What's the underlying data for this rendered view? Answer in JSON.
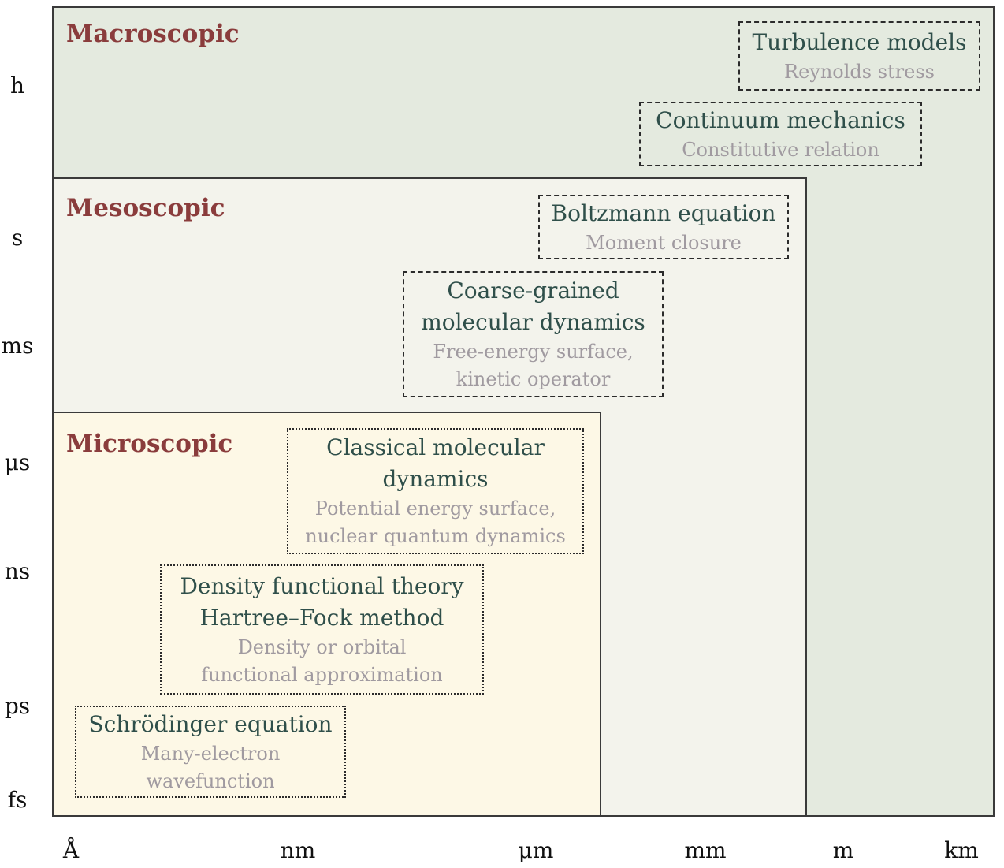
{
  "regions": {
    "macro": {
      "title": "Macroscopic"
    },
    "meso": {
      "title": "Mesoscopic"
    },
    "micro": {
      "title": "Microscopic"
    }
  },
  "methods": {
    "turbulence": {
      "title": "Turbulence models",
      "subtitle": "Reynolds stress"
    },
    "continuum": {
      "title": "Continuum mechanics",
      "subtitle": "Constitutive relation"
    },
    "boltzmann": {
      "title": "Boltzmann equation",
      "subtitle": "Moment closure"
    },
    "coarse_grained": {
      "title_lines": [
        "Coarse-grained",
        "molecular dynamics"
      ],
      "subtitle_lines": [
        "Free-energy surface,",
        "kinetic operator"
      ]
    },
    "classical_md": {
      "title_lines": [
        "Classical molecular",
        "dynamics"
      ],
      "subtitle_lines": [
        "Potential energy surface,",
        "nuclear quantum dynamics"
      ]
    },
    "dft": {
      "title_lines": [
        "Density functional theory",
        "Hartree–Fock method"
      ],
      "subtitle_lines": [
        "Density or orbital",
        "functional approximation"
      ]
    },
    "schrodinger": {
      "title": "Schrödinger equation",
      "subtitle_lines": [
        "Many-electron",
        "wavefunction"
      ]
    }
  },
  "axes": {
    "time_ticks": [
      "h",
      "s",
      "ms",
      "μs",
      "ns",
      "ps",
      "fs"
    ],
    "length_ticks": [
      "Å",
      "nm",
      "μm",
      "mm",
      "m",
      "km"
    ]
  }
}
